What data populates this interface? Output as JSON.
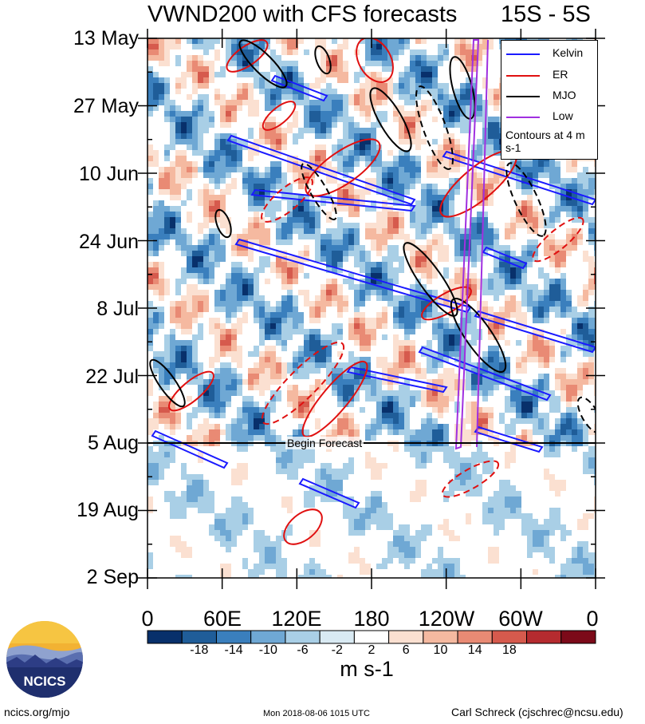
{
  "title": "VWND200 with CFS forecasts",
  "region": "15S - 5S",
  "y_axis_labels": [
    "13 May",
    "27 May",
    "10 Jun",
    "24 Jun",
    "8 Jul",
    "22 Jul",
    "5 Aug",
    "19 Aug",
    "2 Sep"
  ],
  "x_axis_labels": [
    "0",
    "60E",
    "120E",
    "180",
    "120W",
    "60W",
    "0"
  ],
  "forecast_label": "Begin Forecast",
  "legend": {
    "items": [
      {
        "label": "Kelvin",
        "color": "#1a1aff"
      },
      {
        "label": "ER",
        "color": "#e01010"
      },
      {
        "label": "MJO",
        "color": "#000000"
      },
      {
        "label": "Low",
        "color": "#a030e0"
      }
    ],
    "note": "Contours at 4 m s-1"
  },
  "colorbar": {
    "ticks": [
      "-18",
      "-14",
      "-10",
      "-6",
      "-2",
      "2",
      "6",
      "10",
      "14",
      "18"
    ],
    "colors": [
      "#08306b",
      "#1f5d99",
      "#3a7fbd",
      "#6fa8d4",
      "#a9cfe6",
      "#d9eaf3",
      "#ffffff",
      "#fbe0d1",
      "#f5b9a0",
      "#e98a74",
      "#d65a4d",
      "#b52b2f",
      "#7c0a19"
    ],
    "units": "m s-1"
  },
  "chart_data": {
    "type": "heatmap",
    "title": "VWND200 with CFS forecasts",
    "subtitle": "15S - 5S",
    "x_ticks": [
      "0",
      "60E",
      "120E",
      "180",
      "120W",
      "60W",
      "0"
    ],
    "x_range_deg": [
      0,
      360
    ],
    "y_ticks": [
      "13 May",
      "27 May",
      "10 Jun",
      "24 Jun",
      "8 Jul",
      "22 Jul",
      "5 Aug",
      "19 Aug",
      "2 Sep"
    ],
    "y_range": [
      "13 May",
      "2 Sep"
    ],
    "forecast_start": "5 Aug",
    "colorbar_levels": [
      -18,
      -14,
      -10,
      -6,
      -2,
      2,
      6,
      10,
      14,
      18
    ],
    "units": "m s-1",
    "contour_interval": "4 m s-1",
    "overlays": [
      "Kelvin",
      "ER",
      "MJO",
      "Low"
    ]
  },
  "logo": {
    "text": "NCICS"
  },
  "footer": {
    "left": "ncics.org/mjo",
    "middle": "Mon 2018-08-06 1015 UTC",
    "right": "Carl Schreck (cjschrec@ncsu.edu)"
  }
}
